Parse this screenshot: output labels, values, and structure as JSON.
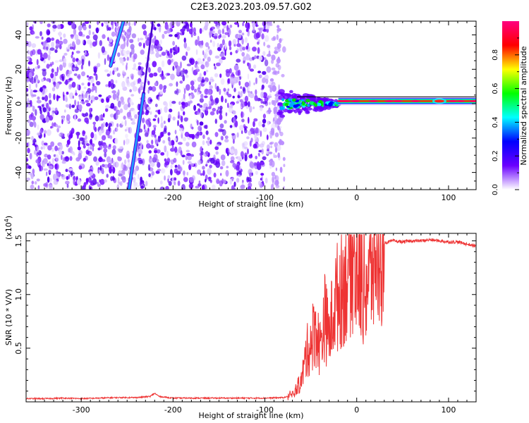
{
  "title": "C2E3.2023.203.09.57.G02",
  "chart_data": [
    {
      "type": "heatmap",
      "xlabel": "Height of straight line (km)",
      "ylabel": "Frequency (Hz)",
      "xlim": [
        -360,
        130
      ],
      "ylim": [
        -50,
        48
      ],
      "x_ticks": [
        -300,
        -200,
        -100,
        0,
        100
      ],
      "x_tick_labels": [
        "-300",
        "-200",
        "-100",
        "0",
        "100"
      ],
      "y_ticks": [
        -40,
        -20,
        0,
        20,
        40
      ],
      "y_tick_labels": [
        "-40",
        "-20",
        "0",
        "20",
        "40"
      ],
      "colorbar": {
        "label": "Normalized spectral amplitude",
        "range": [
          0,
          1
        ],
        "ticks": [
          0.0,
          0.2,
          0.4,
          0.6,
          0.8
        ],
        "tick_labels": [
          "0.0",
          "0.2",
          "0.4",
          "0.6",
          "0.8"
        ],
        "colors": [
          "#ffffff",
          "#6a00ff",
          "#0000ff",
          "#00ffff",
          "#00ff00",
          "#ffff00",
          "#ff0000",
          "#ff0080"
        ]
      },
      "features": [
        {
          "name": "noise-field",
          "x_range": [
            -360,
            -85
          ],
          "f_range": [
            -50,
            48
          ],
          "amplitude": 0.15
        },
        {
          "name": "streak-upper",
          "from": [
            -268,
            22
          ],
          "to": [
            -254,
            48
          ],
          "amplitude": 0.3
        },
        {
          "name": "streak-lower",
          "from": [
            -248,
            -50
          ],
          "to": [
            -232,
            6
          ],
          "amplitude": 0.3
        },
        {
          "name": "streak-faint",
          "from": [
            -232,
            6
          ],
          "to": [
            -222,
            48
          ],
          "amplitude": 0.15
        },
        {
          "name": "carrier-turbulent",
          "x_range": [
            -85,
            -20
          ],
          "f_center": 0,
          "amplitude": 0.4
        },
        {
          "name": "carrier-steady",
          "x_range": [
            -20,
            130
          ],
          "f_center": 1.5,
          "amplitude": 0.9
        }
      ]
    },
    {
      "type": "line",
      "xlabel": "Height of straight line (km)",
      "ylabel": "SNR (10 * V/V)",
      "y_scale_label": "(x10",
      "y_scale_exp": "4",
      "y_scale_close": ")",
      "xlim": [
        -360,
        130
      ],
      "ylim": [
        0,
        1.57
      ],
      "x_ticks": [
        -300,
        -200,
        -100,
        0,
        100
      ],
      "x_tick_labels": [
        "-300",
        "-200",
        "-100",
        "0",
        "100"
      ],
      "y_ticks": [
        0.5,
        1.0,
        1.5
      ],
      "y_tick_labels": [
        "0.5",
        "1.0",
        "1.5"
      ],
      "color": "#ee3333",
      "series": [
        {
          "x": [
            -360,
            -340,
            -320,
            -300,
            -280,
            -260,
            -240,
            -225,
            -220,
            -215,
            -200,
            -180,
            -160,
            -140,
            -120,
            -100,
            -80,
            -70,
            -60,
            -55,
            -50,
            -45,
            -40,
            -35,
            -30,
            -25,
            -20,
            -15,
            -10,
            -5,
            0,
            5,
            10,
            15,
            20,
            25,
            30,
            40,
            50,
            60,
            70,
            80,
            90,
            100,
            110,
            120,
            130
          ],
          "y": [
            0.03,
            0.03,
            0.035,
            0.03,
            0.035,
            0.04,
            0.04,
            0.05,
            0.08,
            0.05,
            0.035,
            0.035,
            0.035,
            0.035,
            0.035,
            0.035,
            0.04,
            0.06,
            0.2,
            0.45,
            0.55,
            0.7,
            0.5,
            0.8,
            0.6,
            0.9,
            1.0,
            1.1,
            1.2,
            1.35,
            1.25,
            1.15,
            1.1,
            1.2,
            1.35,
            1.42,
            1.48,
            1.5,
            1.49,
            1.5,
            1.5,
            1.51,
            1.5,
            1.49,
            1.49,
            1.47,
            1.45
          ]
        }
      ]
    }
  ]
}
